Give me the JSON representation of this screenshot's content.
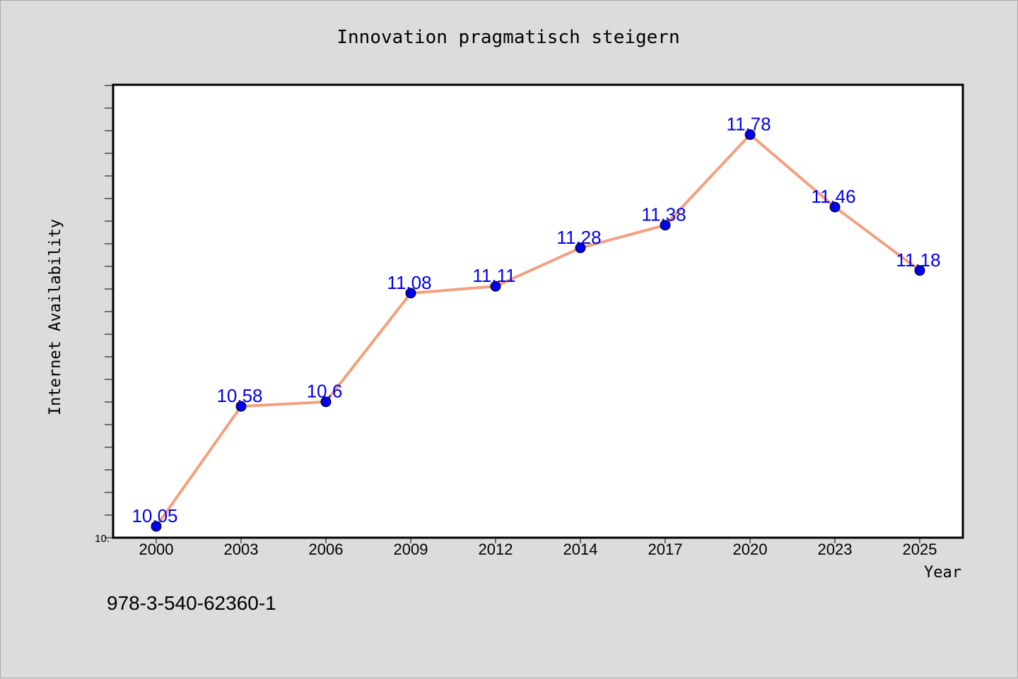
{
  "chart_data": {
    "type": "line",
    "title": "Innovation pragmatisch steigern",
    "xlabel": "Year",
    "ylabel": "Internet Availability",
    "categories": [
      "2000",
      "2003",
      "2006",
      "2009",
      "2012",
      "2014",
      "2017",
      "2020",
      "2023",
      "2025"
    ],
    "series": [
      {
        "values": [
          10.05,
          10.58,
          10.6,
          11.08,
          11.11,
          11.28,
          11.38,
          11.78,
          11.46,
          11.18
        ]
      }
    ],
    "data_labels": [
      "10.05",
      "10.58",
      "10.6",
      "11.08",
      "11.11",
      "11.28",
      "11.38",
      "11.78",
      "11.46",
      "11.18"
    ],
    "ylim": [
      10.0,
      12.0
    ],
    "ytick_labels": [
      "10."
    ],
    "grid": false,
    "legend": "none",
    "colors": {
      "line": "#f4a07e",
      "marker": "#0000ee",
      "marker_edge": "#000000",
      "data_label": "#0000ee",
      "plot_background": "#ffffff",
      "page_background": "#dcdcdc"
    }
  },
  "footer": {
    "isbn": "978-3-540-62360-1"
  }
}
